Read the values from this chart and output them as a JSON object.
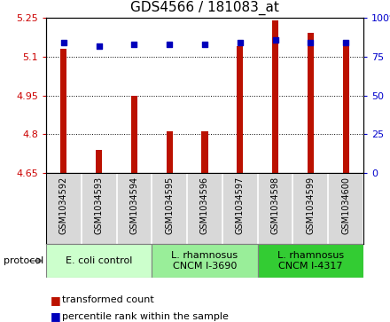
{
  "title": "GDS4566 / 181083_at",
  "samples": [
    "GSM1034592",
    "GSM1034593",
    "GSM1034594",
    "GSM1034595",
    "GSM1034596",
    "GSM1034597",
    "GSM1034598",
    "GSM1034599",
    "GSM1034600"
  ],
  "transformed_count": [
    5.13,
    4.74,
    4.95,
    4.81,
    4.81,
    5.14,
    5.24,
    5.19,
    5.14
  ],
  "percentile_rank": [
    84,
    82,
    83,
    83,
    83,
    84,
    86,
    84,
    84
  ],
  "ylim_left": [
    4.65,
    5.25
  ],
  "ylim_right": [
    0,
    100
  ],
  "yticks_left": [
    4.65,
    4.8,
    4.95,
    5.1,
    5.25
  ],
  "yticks_right": [
    0,
    25,
    50,
    75,
    100
  ],
  "ytick_labels_right": [
    "0",
    "25",
    "50",
    "75",
    "100%"
  ],
  "bar_color": "#bb1100",
  "dot_color": "#0000bb",
  "bar_width": 0.18,
  "grid_color": "black",
  "background_color": "#ffffff",
  "plot_bg_color": "#ffffff",
  "ylabel_left_color": "#cc0000",
  "ylabel_right_color": "#0000cc",
  "sample_box_color": "#d8d8d8",
  "group_colors": [
    "#ccffcc",
    "#99ee99",
    "#33cc33"
  ],
  "group_labels": [
    "E. coli control",
    "L. rhamnosus\nCNCM I-3690",
    "L. rhamnosus\nCNCM I-4317"
  ],
  "group_ranges": [
    [
      0,
      2
    ],
    [
      3,
      5
    ],
    [
      6,
      8
    ]
  ],
  "legend_labels": [
    "transformed count",
    "percentile rank within the sample"
  ],
  "legend_colors": [
    "#bb1100",
    "#0000bb"
  ],
  "protocol_label": "protocol",
  "title_fontsize": 11,
  "tick_fontsize": 8,
  "sample_fontsize": 7,
  "group_fontsize": 8,
  "legend_fontsize": 8
}
